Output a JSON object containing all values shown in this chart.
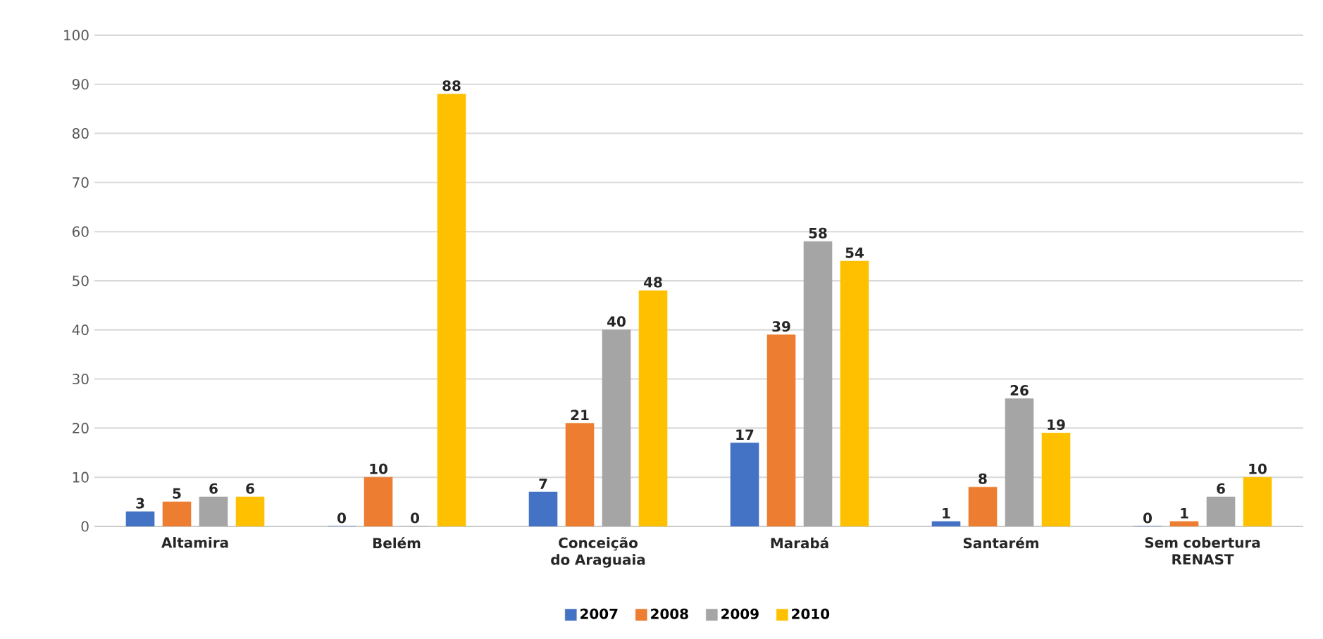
{
  "chart_data": {
    "type": "bar",
    "categories": [
      "Altamira",
      "Belém",
      "Conceição do Araguaia",
      "Marabá",
      "Santarém",
      "Sem cobertura RENAST"
    ],
    "series": [
      {
        "name": "2007",
        "color": "#4472c4",
        "values": [
          3,
          0,
          7,
          17,
          1,
          0
        ]
      },
      {
        "name": "2008",
        "color": "#ed7d31",
        "values": [
          5,
          10,
          21,
          39,
          8,
          1
        ]
      },
      {
        "name": "2009",
        "color": "#a5a5a5",
        "values": [
          6,
          0,
          40,
          58,
          26,
          6
        ]
      },
      {
        "name": "2010",
        "color": "#ffc000",
        "values": [
          6,
          88,
          48,
          54,
          19,
          10
        ]
      }
    ],
    "ylim": [
      0,
      100
    ],
    "yticks": [
      0,
      10,
      20,
      30,
      40,
      50,
      60,
      70,
      80,
      90,
      100
    ],
    "grid": "y",
    "legend": "bottom",
    "data_labels": true
  }
}
